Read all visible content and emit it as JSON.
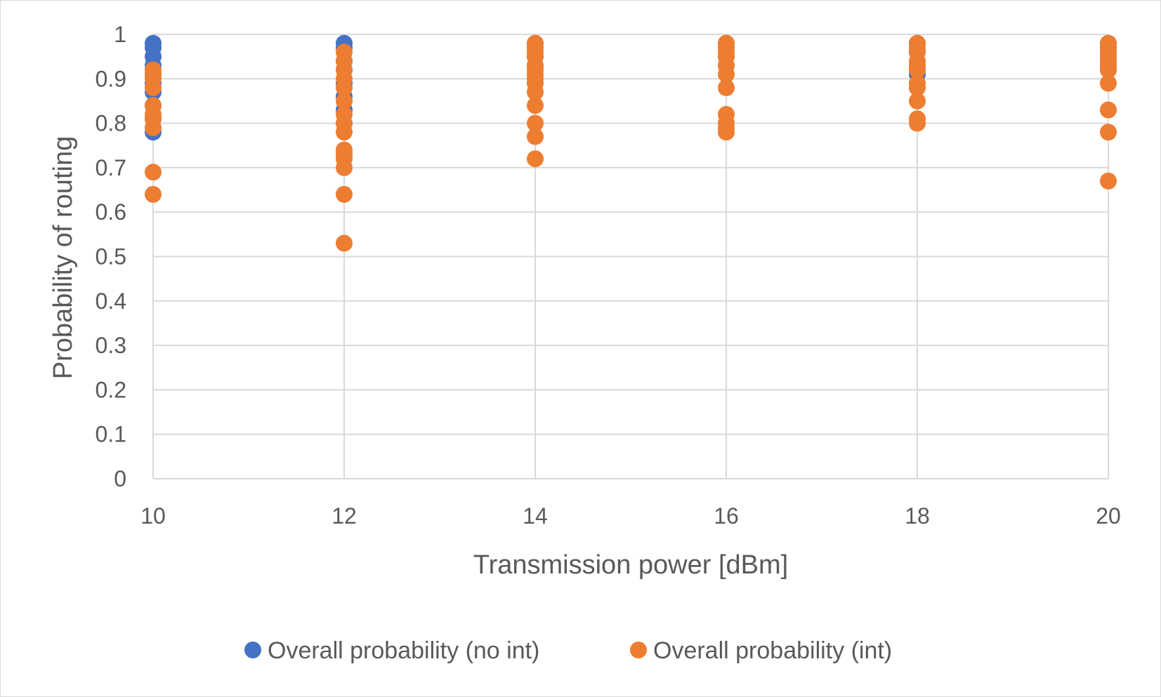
{
  "chart_data": {
    "type": "scatter",
    "title": "",
    "xlabel": "Transmission power [dBm]",
    "ylabel": "Probability of routing",
    "xlim": [
      10,
      20
    ],
    "ylim": [
      0,
      1
    ],
    "xticks": [
      10,
      12,
      14,
      16,
      18,
      20
    ],
    "yticks": [
      0,
      0.1,
      0.2,
      0.3,
      0.4,
      0.5,
      0.6,
      0.7,
      0.8,
      0.9,
      1
    ],
    "xtick_labels": [
      "10",
      "12",
      "14",
      "16",
      "18",
      "20"
    ],
    "ytick_labels": [
      "0",
      "0.1",
      "0.2",
      "0.3",
      "0.4",
      "0.5",
      "0.6",
      "0.7",
      "0.8",
      "0.9",
      "1"
    ],
    "grid": true,
    "legend_position": "bottom",
    "series": [
      {
        "name": "Overall probability (no int)",
        "color": "#4472C4",
        "points": [
          [
            10,
            0.98
          ],
          [
            10,
            0.97
          ],
          [
            10,
            0.95
          ],
          [
            10,
            0.93
          ],
          [
            10,
            0.91
          ],
          [
            10,
            0.89
          ],
          [
            10,
            0.87
          ],
          [
            10,
            0.84
          ],
          [
            10,
            0.81
          ],
          [
            10,
            0.78
          ],
          [
            12,
            0.98
          ],
          [
            12,
            0.97
          ],
          [
            12,
            0.94
          ],
          [
            12,
            0.92
          ],
          [
            12,
            0.89
          ],
          [
            12,
            0.86
          ],
          [
            12,
            0.83
          ],
          [
            12,
            0.8
          ],
          [
            14,
            0.98
          ],
          [
            14,
            0.97
          ],
          [
            14,
            0.95
          ],
          [
            14,
            0.93
          ],
          [
            16,
            0.98
          ],
          [
            16,
            0.97
          ],
          [
            16,
            0.95
          ],
          [
            16,
            0.93
          ],
          [
            18,
            0.98
          ],
          [
            18,
            0.96
          ],
          [
            18,
            0.93
          ],
          [
            18,
            0.91
          ],
          [
            20,
            0.98
          ],
          [
            20,
            0.97
          ],
          [
            20,
            0.95
          ],
          [
            20,
            0.93
          ]
        ]
      },
      {
        "name": "Overall probability (int)",
        "color": "#ED7D31",
        "points": [
          [
            10,
            0.92
          ],
          [
            10,
            0.91
          ],
          [
            10,
            0.9
          ],
          [
            10,
            0.88
          ],
          [
            10,
            0.84
          ],
          [
            10,
            0.82
          ],
          [
            10,
            0.81
          ],
          [
            10,
            0.79
          ],
          [
            10,
            0.69
          ],
          [
            10,
            0.64
          ],
          [
            12,
            0.96
          ],
          [
            12,
            0.94
          ],
          [
            12,
            0.92
          ],
          [
            12,
            0.9
          ],
          [
            12,
            0.88
          ],
          [
            12,
            0.85
          ],
          [
            12,
            0.82
          ],
          [
            12,
            0.8
          ],
          [
            12,
            0.78
          ],
          [
            12,
            0.74
          ],
          [
            12,
            0.73
          ],
          [
            12,
            0.72
          ],
          [
            12,
            0.7
          ],
          [
            12,
            0.64
          ],
          [
            12,
            0.53
          ],
          [
            14,
            0.98
          ],
          [
            14,
            0.97
          ],
          [
            14,
            0.96
          ],
          [
            14,
            0.95
          ],
          [
            14,
            0.93
          ],
          [
            14,
            0.92
          ],
          [
            14,
            0.91
          ],
          [
            14,
            0.9
          ],
          [
            14,
            0.89
          ],
          [
            14,
            0.87
          ],
          [
            14,
            0.84
          ],
          [
            14,
            0.8
          ],
          [
            14,
            0.77
          ],
          [
            14,
            0.72
          ],
          [
            16,
            0.98
          ],
          [
            16,
            0.97
          ],
          [
            16,
            0.96
          ],
          [
            16,
            0.95
          ],
          [
            16,
            0.93
          ],
          [
            16,
            0.91
          ],
          [
            16,
            0.88
          ],
          [
            16,
            0.82
          ],
          [
            16,
            0.8
          ],
          [
            16,
            0.79
          ],
          [
            16,
            0.78
          ],
          [
            18,
            0.98
          ],
          [
            18,
            0.97
          ],
          [
            18,
            0.96
          ],
          [
            18,
            0.94
          ],
          [
            18,
            0.93
          ],
          [
            18,
            0.92
          ],
          [
            18,
            0.89
          ],
          [
            18,
            0.88
          ],
          [
            18,
            0.85
          ],
          [
            18,
            0.81
          ],
          [
            18,
            0.8
          ],
          [
            20,
            0.98
          ],
          [
            20,
            0.97
          ],
          [
            20,
            0.96
          ],
          [
            20,
            0.95
          ],
          [
            20,
            0.94
          ],
          [
            20,
            0.93
          ],
          [
            20,
            0.92
          ],
          [
            20,
            0.89
          ],
          [
            20,
            0.83
          ],
          [
            20,
            0.78
          ],
          [
            20,
            0.67
          ]
        ]
      }
    ]
  }
}
